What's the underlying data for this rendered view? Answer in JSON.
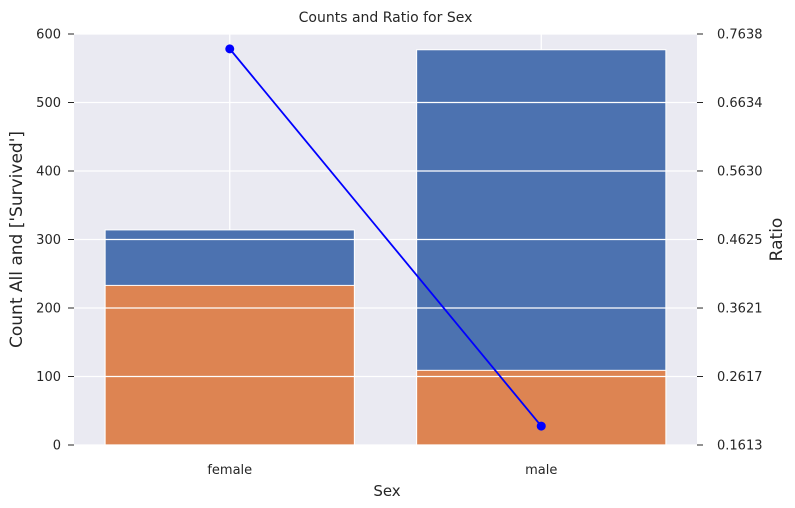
{
  "chart_data": {
    "type": "bar",
    "title": "Counts and Ratio for Sex",
    "xlabel": "Sex",
    "ylabel": "Count All and ['Survived']",
    "y2label": "Ratio",
    "categories": [
      "female",
      "male"
    ],
    "series": [
      {
        "kind": "bar",
        "axis": "left",
        "values": [
          314,
          577
        ],
        "color": "#4c72b0"
      },
      {
        "kind": "bar",
        "axis": "left",
        "values": [
          233,
          109
        ],
        "color": "#dd8452"
      },
      {
        "kind": "line",
        "axis": "right",
        "values": [
          0.742,
          0.189
        ],
        "color": "#0000ff"
      }
    ],
    "ylim": [
      0,
      600
    ],
    "yticks": [
      0,
      100,
      200,
      300,
      400,
      500,
      600
    ],
    "y2lim": [
      0.1613,
      0.7638
    ],
    "y2ticks": [
      "0.1613",
      "0.2617",
      "0.3621",
      "0.4625",
      "0.5630",
      "0.6634",
      "0.7638"
    ],
    "grid": true,
    "background": "#eaeaf2",
    "y2label_color": "#0000ff"
  }
}
